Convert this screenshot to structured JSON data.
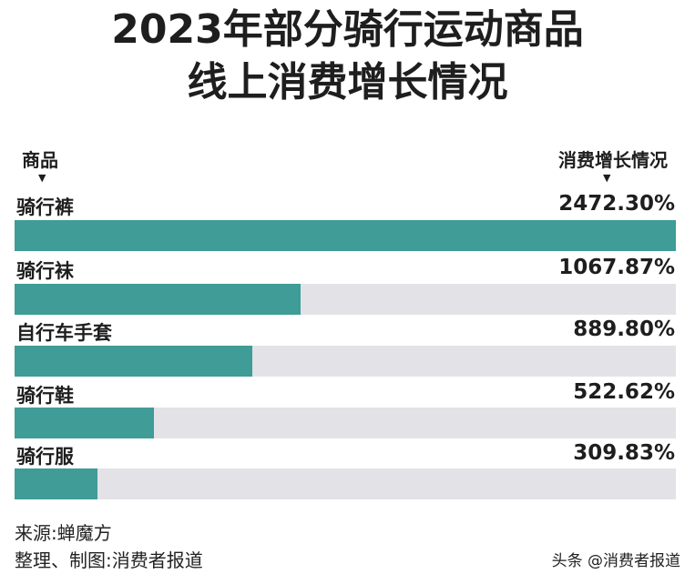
{
  "chart_data": {
    "type": "bar",
    "orientation": "horizontal",
    "title": "2023年部分骑行运动商品\n线上消费增长情况",
    "title_lines": [
      "2023年部分骑行运动商品",
      "线上消费增长情况"
    ],
    "category_header": "商品",
    "value_header": "消费增长情况",
    "categories": [
      "骑行裤",
      "骑行袜",
      "自行车手套",
      "骑行鞋",
      "骑行服"
    ],
    "values": [
      2472.3,
      1067.87,
      889.8,
      522.62,
      309.83
    ],
    "value_labels": [
      "2472.30%",
      "1067.87%",
      "889.80%",
      "522.62%",
      "309.83%"
    ],
    "unit": "%",
    "xlim": [
      0,
      2472.3
    ],
    "grid": false,
    "legend": "none",
    "bar_color": "#3f9c96",
    "track_color": "#e3e2e6"
  },
  "footer": {
    "source": "来源:蝉魔方",
    "credit": "整理、制图:消费者报道",
    "watermark": "头条 @消费者报道"
  }
}
